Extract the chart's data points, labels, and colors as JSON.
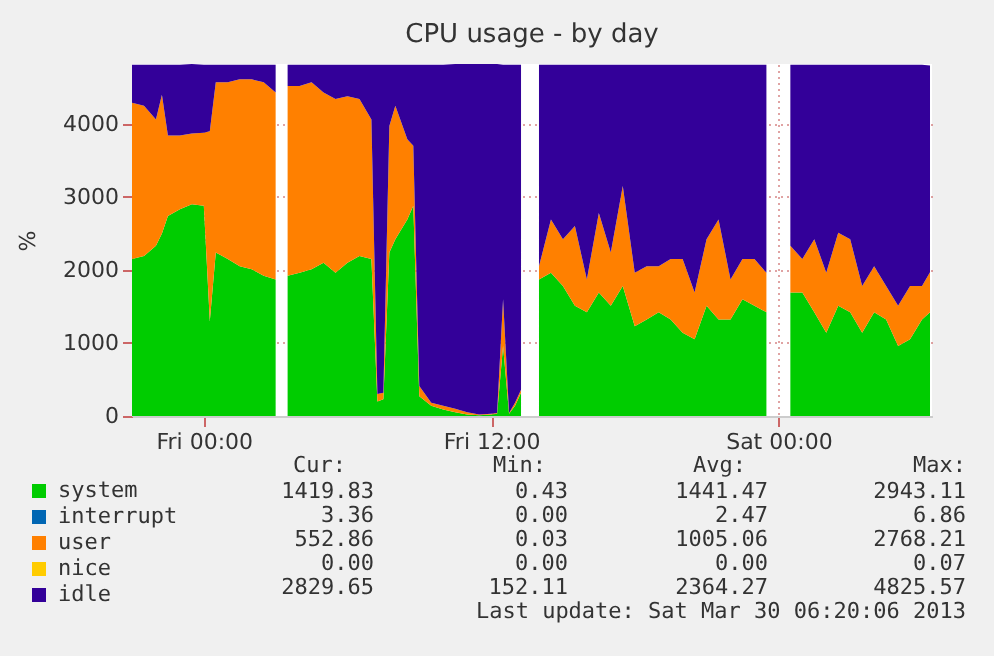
{
  "chart_data": {
    "type": "area",
    "stacked": true,
    "title": "CPU usage - by day",
    "ylabel": "%",
    "x": [
      "2013-03-28T21:00",
      "2013-03-28T21:30",
      "2013-03-28T22:00",
      "2013-03-28T22:15",
      "2013-03-28T22:30",
      "2013-03-28T23:00",
      "2013-03-28T23:30",
      "2013-03-29T00:00",
      "2013-03-29T00:15",
      "2013-03-29T00:30",
      "2013-03-29T01:00",
      "2013-03-29T01:30",
      "2013-03-29T02:00",
      "2013-03-29T02:30",
      "2013-03-29T03:00",
      "2013-03-29T03:20",
      "2013-03-29T03:30",
      "2013-03-29T04:00",
      "2013-03-29T04:30",
      "2013-03-29T05:00",
      "2013-03-29T05:30",
      "2013-03-29T06:00",
      "2013-03-29T06:30",
      "2013-03-29T07:00",
      "2013-03-29T07:15",
      "2013-03-29T07:30",
      "2013-03-29T07:45",
      "2013-03-29T08:00",
      "2013-03-29T08:30",
      "2013-03-29T08:45",
      "2013-03-29T09:00",
      "2013-03-29T09:30",
      "2013-03-29T10:00",
      "2013-03-29T10:30",
      "2013-03-29T11:00",
      "2013-03-29T11:30",
      "2013-03-29T12:00",
      "2013-03-29T12:15",
      "2013-03-29T12:30",
      "2013-03-29T12:45",
      "2013-03-29T13:00",
      "2013-03-29T13:15",
      "2013-03-29T13:30",
      "2013-03-29T14:00",
      "2013-03-29T14:30",
      "2013-03-29T15:00",
      "2013-03-29T15:30",
      "2013-03-29T16:00",
      "2013-03-29T16:30",
      "2013-03-29T17:00",
      "2013-03-29T17:30",
      "2013-03-29T18:00",
      "2013-03-29T18:30",
      "2013-03-29T19:00",
      "2013-03-29T19:30",
      "2013-03-29T20:00",
      "2013-03-29T20:30",
      "2013-03-29T21:00",
      "2013-03-29T21:30",
      "2013-03-29T22:00",
      "2013-03-29T22:30",
      "2013-03-29T23:00",
      "2013-03-29T23:30",
      "2013-03-30T00:00",
      "2013-03-30T00:30",
      "2013-03-30T01:00",
      "2013-03-30T01:30",
      "2013-03-30T02:00",
      "2013-03-30T02:30",
      "2013-03-30T03:00",
      "2013-03-30T03:30",
      "2013-03-30T04:00",
      "2013-03-30T04:30",
      "2013-03-30T05:00",
      "2013-03-30T05:30",
      "2013-03-30T06:00",
      "2013-03-30T06:20"
    ],
    "series": [
      {
        "name": "system",
        "color": "#00cc00",
        "values": [
          2150,
          2190,
          2330,
          2500,
          2740,
          2830,
          2900,
          2880,
          1300,
          2240,
          2150,
          2050,
          2010,
          1920,
          1870,
          null,
          1920,
          1960,
          2010,
          2100,
          1960,
          2100,
          2190,
          2150,
          200,
          230,
          2240,
          2420,
          2690,
          2880,
          270,
          140,
          90,
          50,
          20,
          10,
          20,
          30,
          960,
          30,
          140,
          320,
          null,
          1870,
          1960,
          1780,
          1510,
          1420,
          1690,
          1510,
          1780,
          1230,
          1320,
          1420,
          1320,
          1140,
          1050,
          1510,
          1320,
          1320,
          1600,
          1510,
          1420,
          null,
          1690,
          1690,
          1420,
          1140,
          1510,
          1420,
          1140,
          1420,
          1320,
          960,
          1050,
          1320,
          1420
        ]
      },
      {
        "name": "interrupt",
        "color": "#0066b3",
        "values": [
          null,
          null,
          null,
          null,
          null,
          null,
          null,
          null,
          null,
          null,
          null,
          null,
          null,
          null,
          null,
          null,
          null,
          null,
          null,
          null,
          null,
          null,
          null,
          null,
          null,
          null,
          null,
          null,
          null,
          null,
          null,
          null,
          null,
          null,
          null,
          null,
          null,
          null,
          null,
          null,
          null,
          null,
          null,
          null,
          null,
          null,
          null,
          null,
          null,
          null,
          null,
          null,
          null,
          null,
          null,
          null,
          null,
          null,
          null,
          null,
          null,
          null,
          null,
          null,
          null,
          null,
          null,
          null,
          null,
          null,
          null,
          null,
          null,
          null,
          null,
          null,
          null
        ]
      },
      {
        "name": "user",
        "color": "#ff8000",
        "values": [
          2140,
          2060,
          1730,
          1900,
          1100,
          1010,
          970,
          1000,
          2600,
          2330,
          2420,
          2560,
          2600,
          2650,
          2560,
          null,
          2600,
          2560,
          2560,
          2330,
          2380,
          2280,
          2150,
          1910,
          100,
          90,
          1730,
          1830,
          1100,
          820,
          140,
          40,
          50,
          50,
          30,
          10,
          10,
          10,
          640,
          10,
          40,
          40,
          null,
          180,
          730,
          640,
          1090,
          450,
          1090,
          730,
          1370,
          730,
          730,
          630,
          830,
          1010,
          640,
          910,
          1370,
          550,
          550,
          640,
          540,
          null,
          640,
          460,
          1000,
          820,
          1000,
          1000,
          640,
          630,
          460,
          550,
          730,
          460,
          550
        ]
      },
      {
        "name": "nice",
        "color": "#ffcc00",
        "values": [
          null,
          null,
          null,
          null,
          null,
          null,
          null,
          null,
          null,
          null,
          null,
          null,
          null,
          null,
          null,
          null,
          null,
          null,
          null,
          null,
          null,
          null,
          null,
          null,
          null,
          null,
          null,
          null,
          null,
          null,
          null,
          null,
          null,
          null,
          null,
          null,
          null,
          null,
          null,
          null,
          null,
          null,
          null,
          null,
          null,
          null,
          null,
          null,
          null,
          null,
          null,
          null,
          null,
          null,
          null,
          null,
          null,
          null,
          null,
          null,
          null,
          null,
          null,
          null,
          null,
          null,
          null,
          null,
          null,
          null,
          null,
          null,
          null,
          null,
          null,
          null,
          null
        ]
      },
      {
        "name": "idle",
        "color": "#330099",
        "values": [
          520,
          560,
          750,
          410,
          970,
          970,
          950,
          930,
          910,
          240,
          240,
          200,
          200,
          240,
          380,
          null,
          290,
          290,
          240,
          380,
          470,
          430,
          470,
          750,
          4510,
          4490,
          840,
          560,
          1020,
          1110,
          4400,
          4630,
          4670,
          4720,
          4770,
          4800,
          4790,
          4780,
          3210,
          4770,
          4630,
          4450,
          null,
          2760,
          2120,
          2390,
          2210,
          2940,
          2030,
          2570,
          1660,
          2850,
          2760,
          2760,
          2660,
          2660,
          3120,
          2390,
          2120,
          2940,
          2660,
          2660,
          2850,
          null,
          2480,
          2660,
          2390,
          2850,
          2300,
          2390,
          3030,
          2760,
          3030,
          3300,
          3030,
          3030,
          2830
        ]
      }
    ],
    "xlim": [
      "2013-03-28T21:00",
      "2013-03-30T06:25"
    ],
    "xticks": [
      {
        "value": "2013-03-29T00:00",
        "label": "Fri 00:00"
      },
      {
        "value": "2013-03-29T12:00",
        "label": "Fri 12:00"
      },
      {
        "value": "2013-03-30T00:00",
        "label": "Sat 00:00"
      }
    ],
    "ylim": [
      0,
      4820
    ],
    "yticks": [
      0,
      1000,
      2000,
      3000,
      4000
    ],
    "grid": true,
    "legend": "bottom left",
    "annotations": [
      "Cur:",
      "Min:",
      "Avg:",
      "Max:",
      "1419.83",
      "0.43",
      "1441.47",
      "2943.11",
      "3.36",
      "0.00",
      "2.47",
      "6.86",
      "552.86",
      "0.03",
      "1005.06",
      "2768.21",
      "0.00",
      "0.00",
      "0.00",
      "0.07",
      "2829.65",
      "152.11",
      "2364.27",
      "4825.57",
      "Last update: Sat Mar 30 06:20:06 2013"
    ]
  }
}
